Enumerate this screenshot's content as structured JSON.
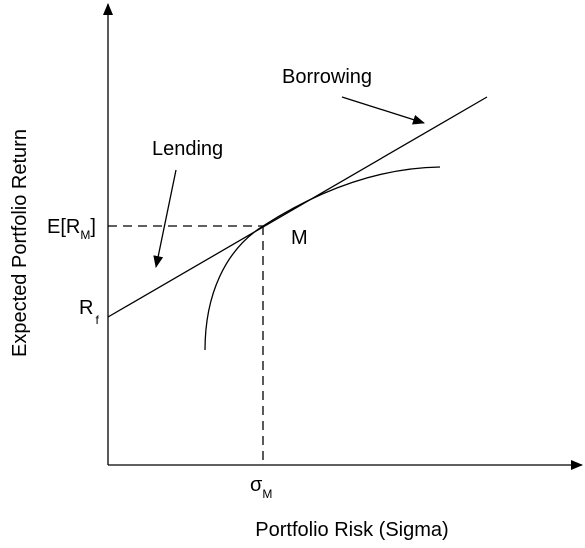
{
  "axes": {
    "y_label": "Expected Portfolio Return",
    "x_label": "Portfolio Risk (Sigma)"
  },
  "annotations": {
    "borrowing": "Borrowing",
    "lending": "Lending",
    "market_portfolio": "M"
  },
  "y_ticks": {
    "expected_return": {
      "open": "E[R",
      "subscript": "M",
      "close": "]"
    },
    "risk_free": {
      "symbol": "R",
      "subscript": "f"
    }
  },
  "x_ticks": {
    "sigma": {
      "symbol": "σ",
      "subscript": "M"
    }
  }
}
